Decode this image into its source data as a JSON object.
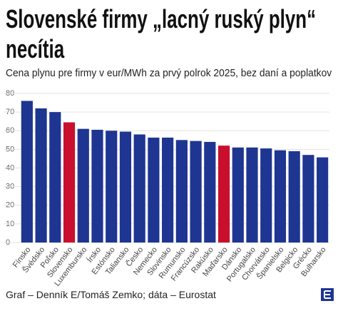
{
  "chart_data": {
    "type": "bar",
    "title": "Slovenské firmy „lacný ruský plyn“ necítia",
    "subtitle": "Cena plynu pre firmy v eur/MWh za prvý polrok 2025, bez daní a poplatkov",
    "source": "Graf – Denník E/Tomáš Zemko; dáta – Eurostat",
    "categories": [
      "Fínsko",
      "Švédsko",
      "Poľsko",
      "Slovensko",
      "Luxembursko",
      "Írsko",
      "Estónsko",
      "Taliansko",
      "Česko",
      "Nemecko",
      "Slovinsko",
      "Rumunsko",
      "Francúzsko",
      "Rakúsko",
      "Maďarsko",
      "Dánsko",
      "Portugalsko",
      "Chorvátsko",
      "Španielsko",
      "Belgicko",
      "Grécko",
      "Bulharsko"
    ],
    "values": [
      76,
      72,
      70,
      64.5,
      61,
      60.5,
      60,
      59.5,
      58,
      56.3,
      56.3,
      55,
      54.5,
      54,
      52,
      51,
      51,
      50.5,
      49.5,
      49,
      47,
      45.7
    ],
    "colors": [
      "#1e3591",
      "#1e3591",
      "#1e3591",
      "#c8102e",
      "#1e3591",
      "#1e3591",
      "#1e3591",
      "#1e3591",
      "#1e3591",
      "#1e3591",
      "#1e3591",
      "#1e3591",
      "#1e3591",
      "#1e3591",
      "#c8102e",
      "#1e3591",
      "#1e3591",
      "#1e3591",
      "#1e3591",
      "#1e3591",
      "#1e3591",
      "#1e3591"
    ],
    "ylim": [
      0,
      80
    ],
    "yticks": [
      0,
      10,
      20,
      30,
      40,
      50,
      60,
      70,
      80
    ],
    "grid": true
  }
}
